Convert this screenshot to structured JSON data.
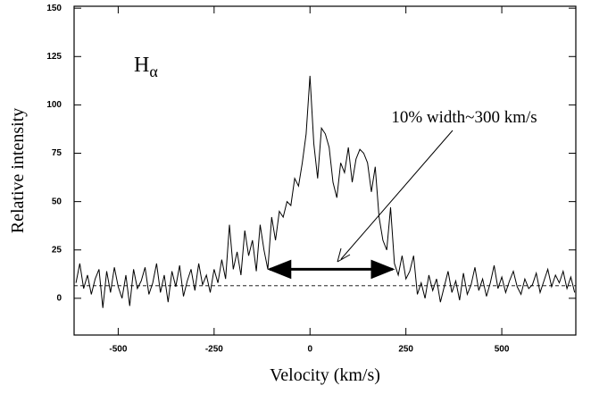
{
  "chart_data": {
    "type": "line",
    "x_label": "Velocity (km/s)",
    "y_label": "Relative intensity",
    "line_label": {
      "text": "H",
      "subscript": "α"
    },
    "annotation": "10% width~300 km/s",
    "width_arrow": {
      "x": [
        -110,
        220
      ],
      "y": 15
    },
    "baseline": 6.5,
    "xlim": [
      -615,
      693
    ],
    "ylim": [
      -19,
      151
    ],
    "xticks": [
      -500,
      -250,
      0,
      250,
      500
    ],
    "yticks": [
      0,
      25,
      50,
      75,
      100,
      125,
      150
    ],
    "x": [
      -610,
      -600,
      -590,
      -580,
      -570,
      -560,
      -550,
      -540,
      -530,
      -520,
      -510,
      -500,
      -490,
      -480,
      -470,
      -460,
      -450,
      -440,
      -430,
      -420,
      -410,
      -400,
      -390,
      -380,
      -370,
      -360,
      -350,
      -340,
      -330,
      -320,
      -310,
      -300,
      -290,
      -280,
      -270,
      -260,
      -250,
      -240,
      -230,
      -220,
      -210,
      -200,
      -190,
      -180,
      -170,
      -160,
      -150,
      -140,
      -130,
      -120,
      -110,
      -100,
      -90,
      -80,
      -70,
      -60,
      -50,
      -40,
      -30,
      -20,
      -10,
      0,
      10,
      20,
      30,
      40,
      50,
      60,
      70,
      80,
      90,
      100,
      110,
      120,
      130,
      140,
      150,
      160,
      170,
      180,
      190,
      200,
      210,
      220,
      230,
      240,
      250,
      260,
      270,
      280,
      290,
      300,
      310,
      320,
      330,
      340,
      350,
      360,
      370,
      380,
      390,
      400,
      410,
      420,
      430,
      440,
      450,
      460,
      470,
      480,
      490,
      500,
      510,
      520,
      530,
      540,
      550,
      560,
      570,
      580,
      590,
      600,
      610,
      620,
      630,
      640,
      650,
      660,
      670,
      680,
      690
    ],
    "series": [
      {
        "color": "#000000",
        "values": [
          8,
          18,
          5,
          12,
          2,
          10,
          15,
          -5,
          14,
          3,
          16,
          6,
          0,
          12,
          -4,
          15,
          5,
          9,
          16,
          2,
          8,
          18,
          3,
          12,
          -2,
          14,
          6,
          17,
          1,
          9,
          15,
          4,
          18,
          7,
          12,
          3,
          15,
          8,
          20,
          10,
          38,
          15,
          24,
          12,
          35,
          22,
          30,
          14,
          38,
          25,
          15,
          42,
          30,
          45,
          42,
          50,
          48,
          62,
          58,
          70,
          85,
          115,
          80,
          62,
          88,
          85,
          78,
          60,
          52,
          70,
          65,
          78,
          60,
          72,
          77,
          75,
          70,
          55,
          68,
          42,
          30,
          25,
          47,
          18,
          12,
          22,
          10,
          14,
          22,
          2,
          8,
          0,
          12,
          4,
          10,
          -2,
          6,
          14,
          3,
          9,
          -1,
          13,
          2,
          7,
          16,
          4,
          10,
          1,
          8,
          17,
          5,
          11,
          3,
          9,
          14,
          6,
          2,
          10,
          5,
          7,
          13,
          3,
          9,
          15,
          6,
          12,
          8,
          14,
          5,
          11,
          3
        ]
      }
    ]
  }
}
